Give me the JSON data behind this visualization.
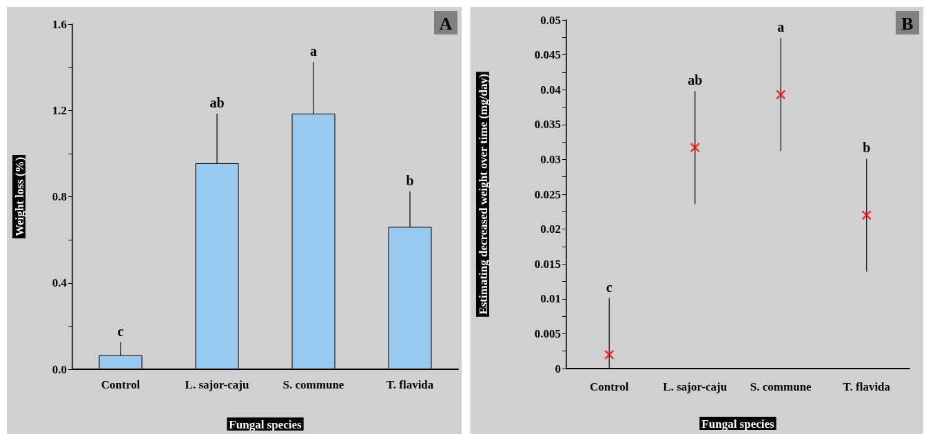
{
  "chart_data": [
    {
      "type": "bar",
      "ylabel": "Weight loss (%)",
      "xlabel": "Fungal species",
      "categories": [
        "Control",
        "L. sajor-caju",
        "S. commune",
        "T. flavida"
      ],
      "values": [
        0.065,
        0.955,
        1.185,
        0.66
      ],
      "errors": [
        0.06,
        0.23,
        0.24,
        0.165
      ],
      "color": "#99c9ee",
      "ylim": [
        0,
        1.6
      ],
      "yticks": [
        {
          "value": 0,
          "label": "0.0"
        },
        {
          "value": 0.2,
          "label": null
        },
        {
          "value": 0.4,
          "label": "0.4"
        },
        {
          "value": 0.6,
          "label": null
        },
        {
          "value": 0.8,
          "label": "0.8"
        },
        {
          "value": 1.0,
          "label": null
        },
        {
          "value": 1.2,
          "label": "1.2"
        },
        {
          "value": 1.4,
          "label": null
        },
        {
          "value": 1.6,
          "label": "1.6"
        }
      ],
      "grid": false,
      "annotations": [
        "c",
        "ab",
        "a",
        "b",
        "A"
      ]
    },
    {
      "type": "scatter",
      "ylabel": "Estimating decreased weight over time (mg/day)",
      "xlabel": "Fungal species",
      "categories": [
        "Control",
        "L. sajor-caju",
        "S. commune",
        "T. flavida"
      ],
      "values": [
        0.002,
        0.0317,
        0.0393,
        0.022
      ],
      "errors": [
        [
          0,
          0.0101
        ],
        [
          0.0236,
          0.0398
        ],
        [
          0.0312,
          0.0474
        ],
        [
          0.0139,
          0.0301
        ]
      ],
      "color": "#ff0000",
      "marker": "cross",
      "ylim": [
        0,
        0.05
      ],
      "yticks": [
        0,
        {
          "value": 0.0025,
          "label": null
        },
        0.005,
        {
          "value": 0.0075,
          "label": null
        },
        0.01,
        {
          "value": 0.0125,
          "label": null
        },
        0.015,
        {
          "value": 0.0175,
          "label": null
        },
        0.02,
        {
          "value": 0.0225,
          "label": null
        },
        0.025,
        {
          "value": 0.0275,
          "label": null
        },
        0.03,
        {
          "value": 0.0325,
          "label": null
        },
        0.035,
        {
          "value": 0.0375,
          "label": null
        },
        0.04,
        {
          "value": 0.0425,
          "label": null
        },
        0.045,
        {
          "value": 0.0475,
          "label": null
        },
        0.05
      ],
      "grid": false,
      "annotations": [
        "c",
        "ab",
        "a",
        "b",
        "B"
      ]
    }
  ]
}
